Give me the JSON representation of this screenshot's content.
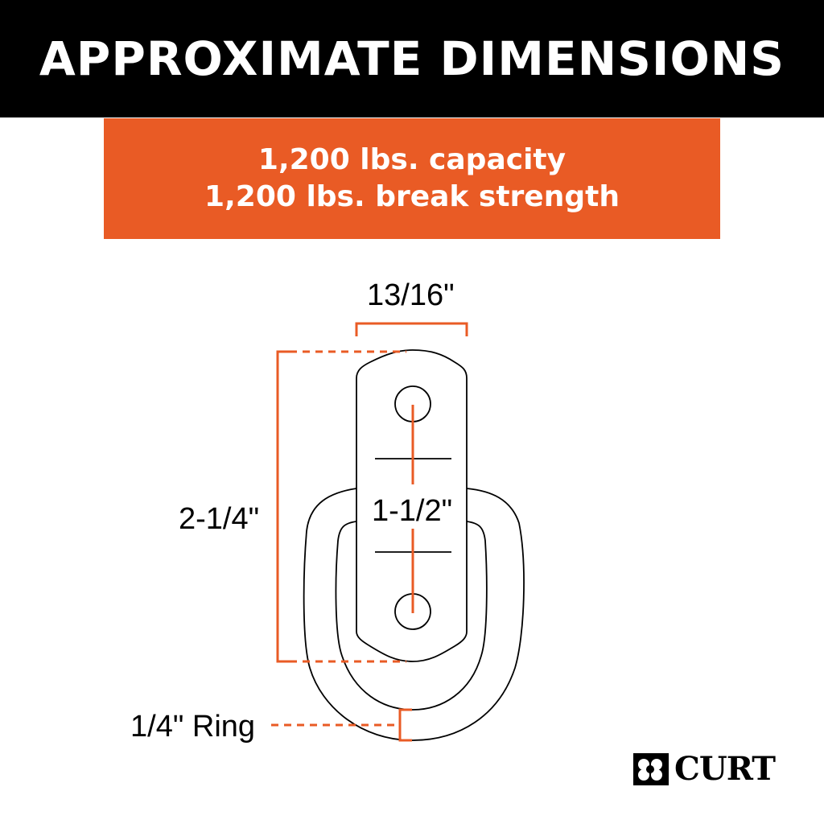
{
  "header": {
    "title": "APPROXIMATE DIMENSIONS"
  },
  "specs": {
    "capacity": "1,200 lbs. capacity",
    "break_strength": "1,200 lbs. break strength"
  },
  "dimensions": {
    "width": "13/16\"",
    "height": "2-1/4\"",
    "hole_spacing": "1-1/2\"",
    "ring": "1/4\" Ring"
  },
  "brand": {
    "name": "CURT"
  },
  "colors": {
    "accent": "#E95B25",
    "header_bg": "#000000"
  }
}
